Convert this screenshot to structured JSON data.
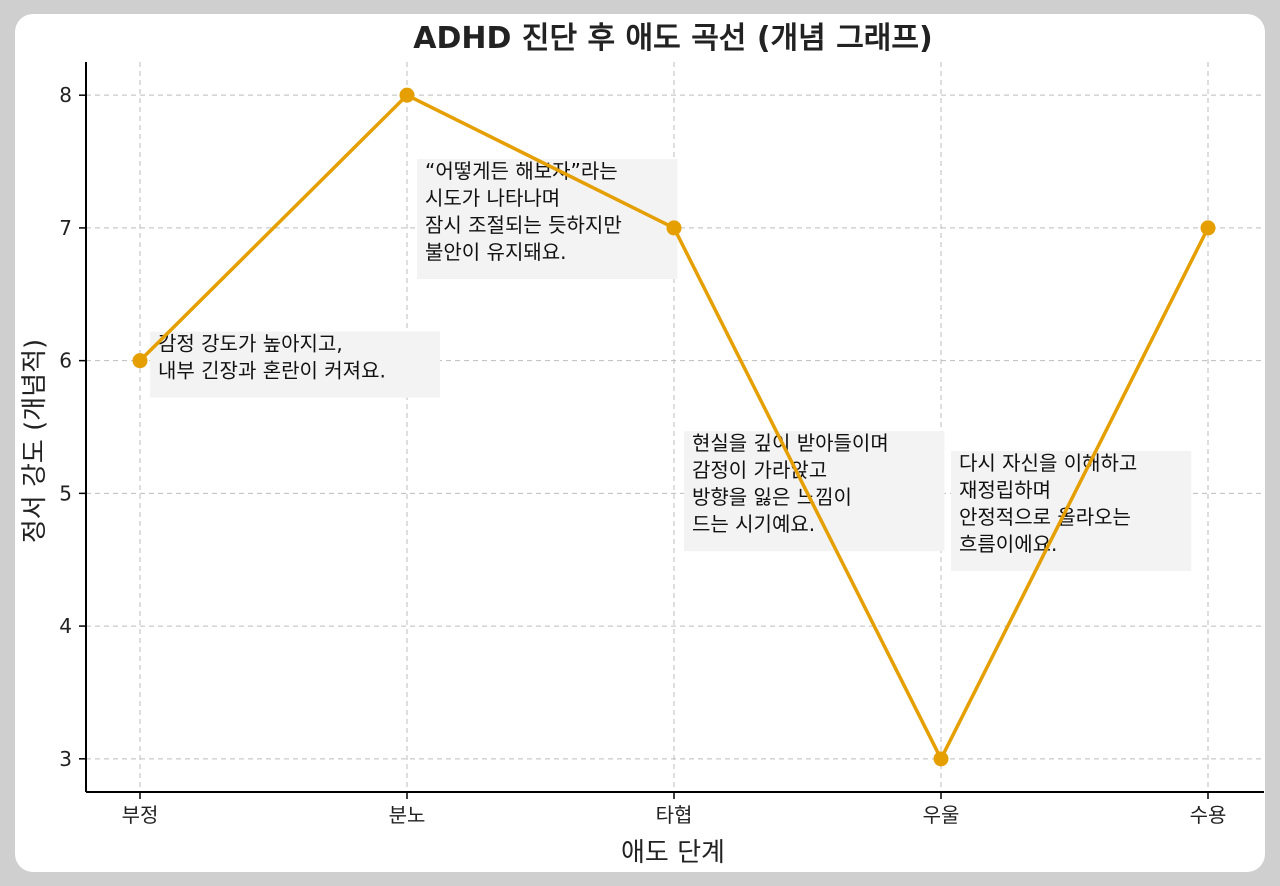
{
  "chart_data": {
    "type": "line",
    "title": "ADHD 진단 후 애도 곡선 (개념 그래프)",
    "xlabel": "애도 단계",
    "ylabel": "정서 강도 (개념적)",
    "categories": [
      "부정",
      "분노",
      "타협",
      "우울",
      "수용"
    ],
    "values": [
      6,
      8,
      7,
      3,
      7
    ],
    "ylim": [
      2.75,
      8.25
    ],
    "yticks": [
      3,
      4,
      5,
      6,
      7,
      8
    ],
    "grid": true,
    "line_color": "#E59F00",
    "annotations": [
      {
        "category": "부정",
        "y": 6,
        "lines": [
          "감정 강도가 높아지고,",
          "내부 긴장과 혼란이 커져요."
        ]
      },
      {
        "category": "분노",
        "y": 7.3,
        "lines": [
          "“어떻게든 해보자”라는",
          "시도가 나타나며",
          "잠시 조절되는 듯하지만",
          "불안이 유지돼요."
        ]
      },
      {
        "category": "타협",
        "y": 5.25,
        "lines": [
          "현실을 깊이 받아들이며",
          "감정이 가라앉고",
          "방향을 잃은 느낌이",
          "드는 시기예요."
        ]
      },
      {
        "category": "우울",
        "y": 5.1,
        "lines": [
          "다시 자신을 이해하고",
          "재정립하며",
          "안정적으로 올라오는",
          "흐름이에요."
        ]
      }
    ]
  }
}
